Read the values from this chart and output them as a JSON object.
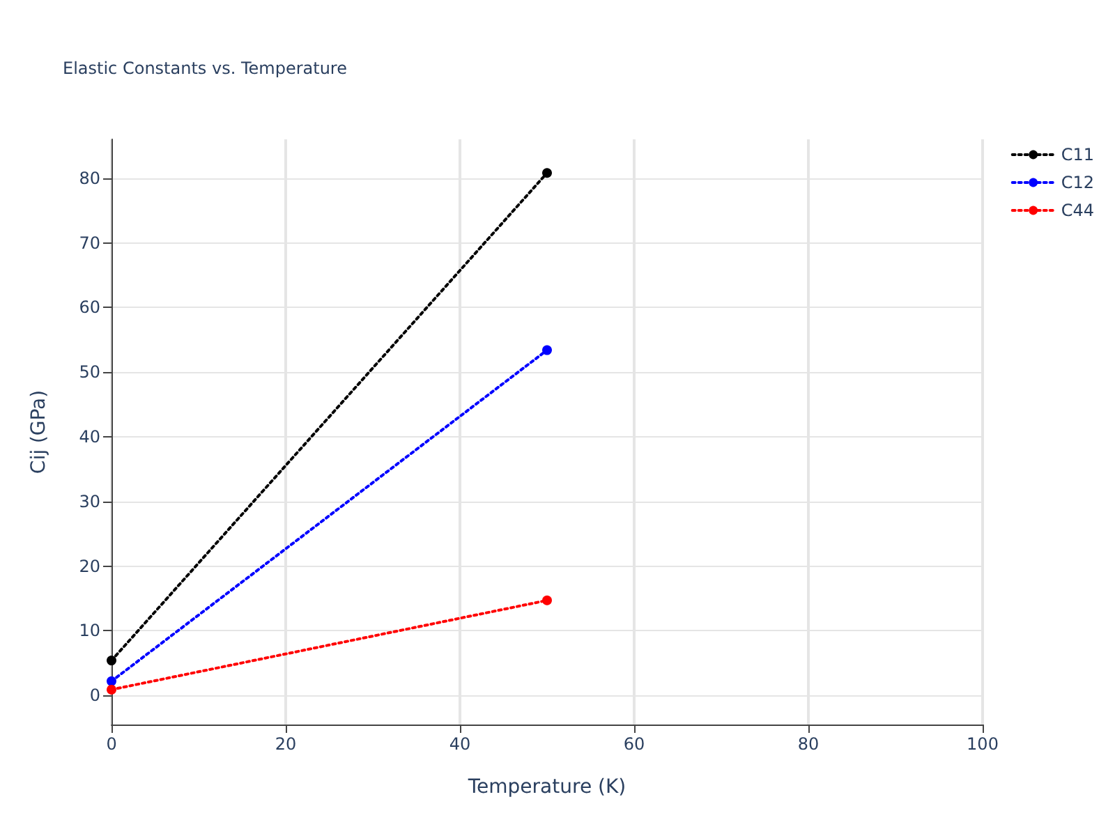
{
  "chart_data": {
    "type": "line",
    "title": "Elastic Constants vs. Temperature",
    "xlabel": "Temperature (K)",
    "ylabel": "Cij (GPa)",
    "x": [
      0,
      50
    ],
    "series": [
      {
        "name": "C11",
        "color": "#000000",
        "values": [
          5.4,
          80.8
        ]
      },
      {
        "name": "C12",
        "color": "#0000ff",
        "values": [
          2.2,
          53.4
        ]
      },
      {
        "name": "C44",
        "color": "#ff0000",
        "values": [
          0.9,
          14.7
        ]
      }
    ],
    "xlim": [
      0,
      100
    ],
    "xticks": [
      0,
      20,
      40,
      60,
      80,
      100
    ],
    "ylim": [
      -4.5,
      86
    ],
    "yticks": [
      0,
      10,
      20,
      30,
      40,
      50,
      60,
      70,
      80
    ],
    "grid": true,
    "legend": "top right",
    "marker": "circle",
    "line_style": "dotted"
  }
}
